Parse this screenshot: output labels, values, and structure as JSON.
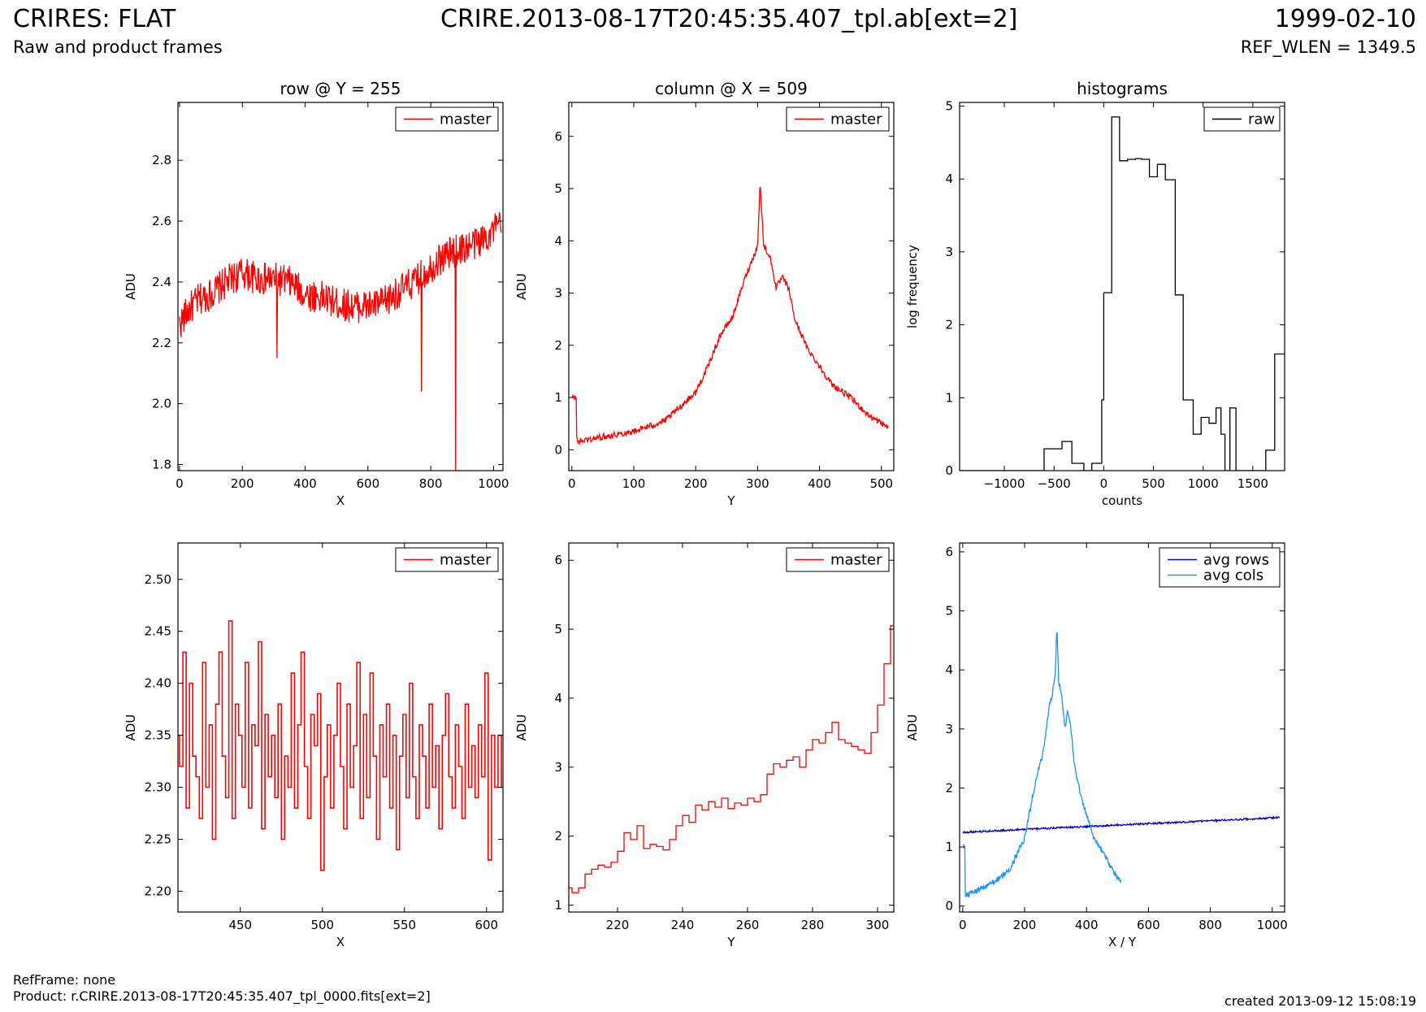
{
  "header": {
    "title": "CRIRES: FLAT",
    "subtitle": "Raw and product frames",
    "file": "CRIRE.2013-08-17T20:45:35.407_tpl.ab[ext=2]",
    "date": "1999-02-10",
    "ref_wlen": "REF_WLEN = 1349.5"
  },
  "footer": {
    "refframe": "RefFrame: none",
    "product": "Product: r.CRIRE.2013-08-17T20:45:35.407_tpl_0000.fits[ext=2]",
    "created": "created 2013-09-12 15:08:19"
  },
  "colors": {
    "master": "#ff0000",
    "raw": "#000000",
    "avg_rows": "#0000cc",
    "avg_cols": "#1e90ff"
  },
  "chart_data": [
    {
      "type": "line",
      "title": "row @ Y = 255",
      "xlabel": "X",
      "ylabel": "ADU",
      "xlim": [
        -5,
        1030
      ],
      "ylim": [
        1.78,
        2.99
      ],
      "xticks": [
        0,
        200,
        400,
        600,
        800,
        1000
      ],
      "yticks": [
        1.8,
        2.0,
        2.2,
        2.4,
        2.6,
        2.8
      ],
      "ytick_labels": [
        "1.8",
        "2.0",
        "2.2",
        "2.4",
        "2.6",
        "2.8"
      ],
      "legend": [
        "master"
      ],
      "legend_position": "top-right",
      "series": [
        {
          "name": "master",
          "color": "#ff0000",
          "x": [
            0,
            30,
            60,
            100,
            150,
            200,
            250,
            300,
            350,
            400,
            450,
            500,
            550,
            600,
            650,
            700,
            750,
            800,
            850,
            900,
            950,
            1000,
            1024
          ],
          "y": [
            2.26,
            2.31,
            2.34,
            2.36,
            2.4,
            2.43,
            2.41,
            2.41,
            2.4,
            2.36,
            2.35,
            2.33,
            2.32,
            2.32,
            2.33,
            2.37,
            2.4,
            2.45,
            2.49,
            2.51,
            2.53,
            2.57,
            2.59
          ],
          "spikes": [
            {
              "x": 310,
              "y": 2.15
            },
            {
              "x": 770,
              "y": 2.04
            },
            {
              "x": 880,
              "y": 1.78
            }
          ],
          "noise": 0.055
        }
      ]
    },
    {
      "type": "line",
      "title": "column @ X = 509",
      "xlabel": "Y",
      "ylabel": "ADU",
      "xlim": [
        -5,
        520
      ],
      "ylim": [
        -0.4,
        6.65
      ],
      "xticks": [
        0,
        100,
        200,
        300,
        400,
        500
      ],
      "yticks": [
        0,
        1,
        2,
        3,
        4,
        5,
        6
      ],
      "ytick_labels": [
        "0",
        "1",
        "2",
        "3",
        "4",
        "5",
        "6"
      ],
      "legend": [
        "master"
      ],
      "legend_position": "top-right",
      "series": [
        {
          "name": "master",
          "color": "#ff0000",
          "x": [
            0,
            7,
            8,
            20,
            50,
            100,
            150,
            200,
            220,
            240,
            260,
            280,
            290,
            300,
            304,
            310,
            320,
            330,
            340,
            350,
            360,
            380,
            400,
            420,
            450,
            480,
            511
          ],
          "y": [
            1.0,
            1.0,
            0.15,
            0.18,
            0.25,
            0.35,
            0.55,
            1.1,
            1.6,
            2.2,
            2.55,
            3.3,
            3.6,
            3.9,
            5.1,
            3.9,
            3.7,
            3.1,
            3.3,
            3.1,
            2.5,
            1.95,
            1.6,
            1.25,
            1.0,
            0.65,
            0.43
          ],
          "noise": 0.06
        }
      ]
    },
    {
      "type": "line",
      "style": "steps-post",
      "title": "histograms",
      "xlabel": "counts",
      "ylabel": "log frequency",
      "xlim": [
        -1450,
        1820
      ],
      "ylim": [
        0,
        5.05
      ],
      "xticks": [
        -1000,
        -500,
        0,
        500,
        1000,
        1500
      ],
      "xtick_labels": [
        "−1000",
        "−500",
        "0",
        "500",
        "1000",
        "1500"
      ],
      "yticks": [
        0,
        1,
        2,
        3,
        4,
        5
      ],
      "ytick_labels": [
        "0",
        "1",
        "2",
        "3",
        "4",
        "5"
      ],
      "legend": [
        "raw"
      ],
      "legend_position": "top-right",
      "series": [
        {
          "name": "raw",
          "color": "#000000",
          "x": [
            -1450,
            -600,
            -420,
            -320,
            -200,
            -120,
            -20,
            0,
            80,
            160,
            240,
            320,
            380,
            460,
            540,
            620,
            720,
            800,
            900,
            980,
            1060,
            1130,
            1180,
            1220,
            1270,
            1330,
            1410,
            1560,
            1630,
            1720,
            1820
          ],
          "y": [
            0,
            0.3,
            0.4,
            0.1,
            0,
            0.1,
            0.97,
            2.44,
            4.85,
            4.25,
            4.27,
            4.28,
            4.27,
            4.03,
            4.2,
            3.99,
            2.41,
            0.97,
            0.5,
            0.73,
            0.65,
            0.86,
            0.5,
            0,
            0.86,
            0,
            0,
            0,
            0.28,
            1.6,
            1.6
          ]
        }
      ]
    },
    {
      "type": "line",
      "style": "steps-mid",
      "xlabel": "X",
      "ylabel": "ADU",
      "xlim": [
        412,
        610
      ],
      "ylim": [
        2.18,
        2.535
      ],
      "xticks": [
        450,
        500,
        550,
        600
      ],
      "yticks": [
        2.2,
        2.25,
        2.3,
        2.35,
        2.4,
        2.45,
        2.5
      ],
      "ytick_labels": [
        "2.20",
        "2.25",
        "2.30",
        "2.35",
        "2.40",
        "2.45",
        "2.50"
      ],
      "legend": [
        "master"
      ],
      "legend_position": "top-right",
      "series": [
        {
          "name": "master",
          "color": "#ff0000",
          "x": [
            412,
            414,
            416,
            418,
            420,
            422,
            424,
            426,
            428,
            430,
            432,
            434,
            436,
            438,
            440,
            442,
            444,
            446,
            448,
            450,
            452,
            454,
            456,
            458,
            460,
            462,
            464,
            466,
            468,
            470,
            472,
            474,
            476,
            478,
            480,
            482,
            484,
            486,
            488,
            490,
            492,
            494,
            496,
            498,
            500,
            502,
            504,
            506,
            508,
            510,
            512,
            514,
            516,
            518,
            520,
            522,
            524,
            526,
            528,
            530,
            532,
            534,
            536,
            538,
            540,
            542,
            544,
            546,
            548,
            550,
            552,
            554,
            556,
            558,
            560,
            562,
            564,
            566,
            568,
            570,
            572,
            574,
            576,
            578,
            580,
            582,
            584,
            586,
            588,
            590,
            592,
            594,
            596,
            598,
            600,
            602,
            604,
            606,
            608,
            610
          ],
          "y": [
            2.35,
            2.32,
            2.43,
            2.28,
            2.4,
            2.33,
            2.31,
            2.27,
            2.42,
            2.3,
            2.36,
            2.25,
            2.38,
            2.43,
            2.33,
            2.29,
            2.46,
            2.27,
            2.38,
            2.35,
            2.3,
            2.42,
            2.28,
            2.36,
            2.34,
            2.44,
            2.26,
            2.37,
            2.31,
            2.35,
            2.29,
            2.38,
            2.25,
            2.33,
            2.3,
            2.41,
            2.28,
            2.36,
            2.43,
            2.32,
            2.27,
            2.37,
            2.34,
            2.39,
            2.22,
            2.31,
            2.36,
            2.28,
            2.35,
            2.4,
            2.32,
            2.26,
            2.38,
            2.3,
            2.34,
            2.42,
            2.27,
            2.37,
            2.29,
            2.41,
            2.33,
            2.25,
            2.36,
            2.31,
            2.38,
            2.28,
            2.35,
            2.24,
            2.33,
            2.37,
            2.29,
            2.4,
            2.31,
            2.27,
            2.36,
            2.33,
            2.28,
            2.38,
            2.3,
            2.34,
            2.26,
            2.35,
            2.39,
            2.31,
            2.28,
            2.36,
            2.32,
            2.27,
            2.38,
            2.3,
            2.34,
            2.29,
            2.36,
            2.31,
            2.41,
            2.23,
            2.35,
            2.3,
            2.35,
            2.3
          ]
        }
      ]
    },
    {
      "type": "line",
      "style": "steps-mid",
      "xlabel": "Y",
      "ylabel": "ADU",
      "xlim": [
        205,
        305
      ],
      "ylim": [
        0.9,
        6.25
      ],
      "xticks": [
        220,
        240,
        260,
        280,
        300
      ],
      "yticks": [
        1,
        2,
        3,
        4,
        5,
        6
      ],
      "ytick_labels": [
        "1",
        "2",
        "3",
        "4",
        "5",
        "6"
      ],
      "legend": [
        "master"
      ],
      "legend_position": "top-right",
      "series": [
        {
          "name": "master",
          "color": "#ff0000",
          "x": [
            205,
            207,
            209,
            211,
            213,
            215,
            217,
            219,
            221,
            223,
            225,
            227,
            229,
            231,
            233,
            235,
            237,
            239,
            241,
            243,
            245,
            247,
            249,
            251,
            253,
            255,
            257,
            259,
            261,
            263,
            265,
            267,
            269,
            271,
            273,
            275,
            277,
            279,
            281,
            283,
            285,
            287,
            289,
            291,
            293,
            295,
            297,
            299,
            301,
            303,
            305
          ],
          "y": [
            1.25,
            1.18,
            1.25,
            1.45,
            1.52,
            1.58,
            1.55,
            1.62,
            1.78,
            2.05,
            1.95,
            2.15,
            1.82,
            1.88,
            1.85,
            1.8,
            1.95,
            2.15,
            2.3,
            2.2,
            2.45,
            2.38,
            2.5,
            2.42,
            2.55,
            2.4,
            2.48,
            2.45,
            2.55,
            2.5,
            2.6,
            2.9,
            3.05,
            3.0,
            3.1,
            3.15,
            3.0,
            3.25,
            3.4,
            3.35,
            3.5,
            3.65,
            3.4,
            3.35,
            3.3,
            3.25,
            3.2,
            3.5,
            3.9,
            4.5,
            5.05
          ]
        }
      ]
    },
    {
      "type": "line",
      "xlabel": "X / Y",
      "ylabel": "ADU",
      "xlim": [
        -10,
        1040
      ],
      "ylim": [
        -0.1,
        6.15
      ],
      "xticks": [
        0,
        200,
        400,
        600,
        800,
        1000
      ],
      "yticks": [
        0,
        1,
        2,
        3,
        4,
        5,
        6
      ],
      "ytick_labels": [
        "0",
        "1",
        "2",
        "3",
        "4",
        "5",
        "6"
      ],
      "legend": [
        "avg rows",
        "avg cols"
      ],
      "legend_position": "top-right",
      "series": [
        {
          "name": "avg rows",
          "color": "#0000cc",
          "x": [
            0,
            1024
          ],
          "y": [
            1.25,
            1.5
          ],
          "noise": 0.015
        },
        {
          "name": "avg cols",
          "color": "#1e90ff",
          "x": [
            0,
            7,
            8,
            20,
            50,
            100,
            150,
            200,
            220,
            240,
            260,
            280,
            290,
            300,
            304,
            310,
            320,
            330,
            340,
            350,
            360,
            380,
            400,
            420,
            450,
            480,
            511
          ],
          "y": [
            1.0,
            1.0,
            0.2,
            0.2,
            0.28,
            0.4,
            0.6,
            1.15,
            1.7,
            2.2,
            2.6,
            3.4,
            3.6,
            4.0,
            4.8,
            3.8,
            3.6,
            3.0,
            3.3,
            3.0,
            2.4,
            1.9,
            1.55,
            1.2,
            0.95,
            0.65,
            0.4
          ],
          "noise": 0.05
        }
      ]
    }
  ]
}
